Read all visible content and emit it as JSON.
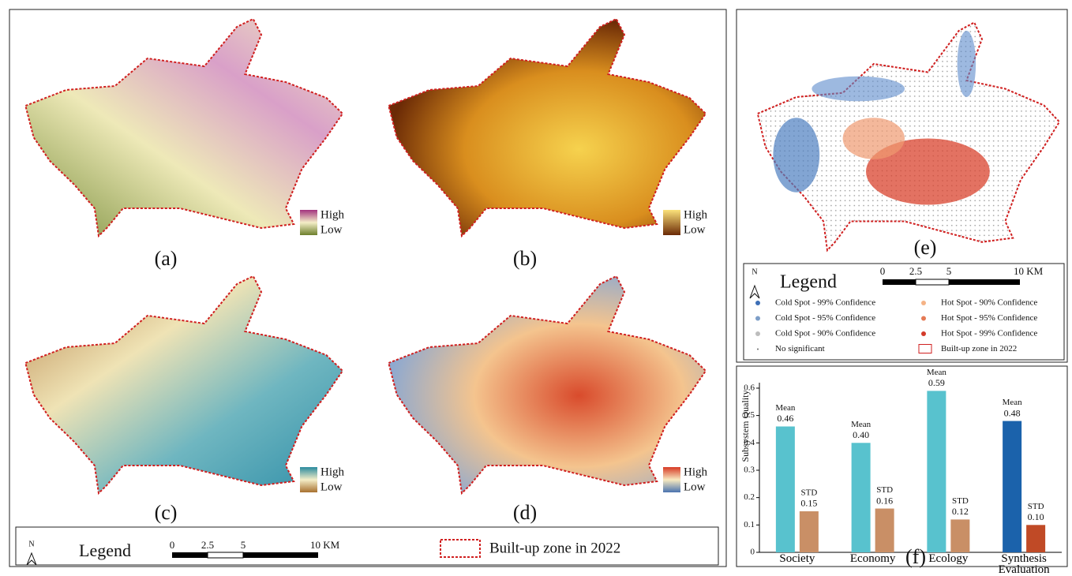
{
  "panels": [
    {
      "label": "(a)",
      "high": "High",
      "low": "Low"
    },
    {
      "label": "(b)",
      "high": "High",
      "low": "Low"
    },
    {
      "label": "(c)",
      "high": "High",
      "low": "Low"
    },
    {
      "label": "(d)",
      "high": "High",
      "low": "Low"
    }
  ],
  "panel_e": {
    "label": "(e)"
  },
  "legend_main": {
    "north": "N",
    "title": "Legend",
    "scale": [
      "0",
      "2.5",
      "5",
      "10 KM"
    ],
    "builtup": "Built-up zone in 2022"
  },
  "legend_e": {
    "north": "N",
    "title": "Legend",
    "scale": [
      "0",
      "2.5",
      "5",
      "10 KM"
    ],
    "items": [
      "Cold Spot - 99% Confidence",
      "Cold Spot - 95% Confidence",
      "Cold Spot - 90% Confidence",
      "No significant",
      "Hot Spot - 90% Confidence",
      "Hot Spot - 95% Confidence",
      "Hot Spot - 99% Confidence",
      "Built-up zone in 2022"
    ]
  },
  "chart_data": {
    "type": "bar",
    "label": "(f)",
    "y_label": "Subsystem Quality",
    "categories": [
      "Society",
      "Economy",
      "Ecology",
      "Synthesis Evaluation"
    ],
    "series": [
      {
        "name": "Mean",
        "colors": [
          "#58c2ce",
          "#58c2ce",
          "#58c2ce",
          "#1b62ab"
        ],
        "values": [
          0.46,
          0.4,
          0.59,
          0.48
        ],
        "value_labels": [
          "0.46",
          "0.40",
          "0.59",
          "0.48"
        ]
      },
      {
        "name": "STD",
        "colors": [
          "#c98f66",
          "#c98f66",
          "#c98f66",
          "#c04a26"
        ],
        "values": [
          0.15,
          0.16,
          0.12,
          0.1
        ],
        "value_labels": [
          "0.15",
          "0.16",
          "0.12",
          "0.10"
        ]
      }
    ],
    "ylim": [
      0,
      0.62
    ],
    "yticks": [
      0,
      0.1,
      0.2,
      0.3,
      0.4,
      0.5,
      0.6
    ]
  }
}
